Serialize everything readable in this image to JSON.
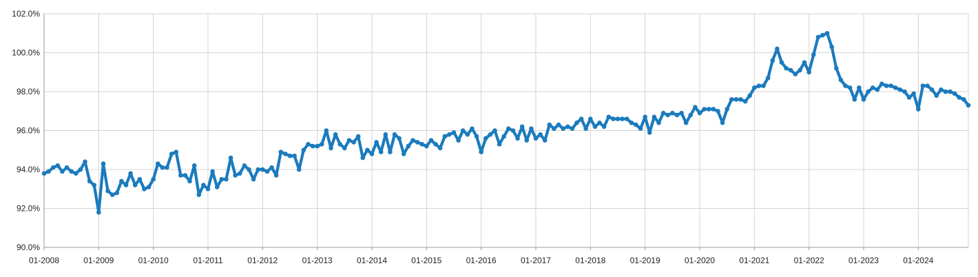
{
  "chart_data": {
    "type": "line",
    "title": "",
    "xlabel": "",
    "ylabel": "",
    "ylim": [
      90.0,
      102.0
    ],
    "y_ticks": [
      "90.0%",
      "92.0%",
      "94.0%",
      "96.0%",
      "98.0%",
      "100.0%",
      "102.0%"
    ],
    "x_ticks": [
      "01-2008",
      "01-2009",
      "01-2010",
      "01-2011",
      "01-2012",
      "01-2013",
      "01-2014",
      "01-2015",
      "01-2016",
      "01-2017",
      "01-2018",
      "01-2019",
      "01-2020",
      "01-2021",
      "01-2022",
      "01-2023",
      "01-2024"
    ],
    "x_start": "01-2008",
    "x_end": "12-2024",
    "grid": true,
    "legend": "none",
    "series_color": "#1b7bbd",
    "series": [
      {
        "values": [
          93.8,
          93.9,
          94.1,
          94.2,
          93.9,
          94.1,
          93.9,
          93.8,
          94.0,
          94.4,
          93.4,
          93.2,
          91.8,
          94.3,
          92.9,
          92.7,
          92.8,
          93.4,
          93.2,
          93.8,
          93.2,
          93.5,
          93.0,
          93.1,
          93.5,
          94.3,
          94.1,
          94.1,
          94.8,
          94.9,
          93.7,
          93.7,
          93.4,
          94.2,
          92.7,
          93.2,
          93.0,
          93.9,
          93.1,
          93.5,
          93.5,
          94.6,
          93.7,
          93.8,
          94.2,
          94.0,
          93.5,
          94.0,
          94.0,
          93.9,
          94.1,
          93.7,
          94.9,
          94.8,
          94.7,
          94.7,
          94.0,
          95.0,
          95.3,
          95.2,
          95.2,
          95.3,
          96.0,
          95.1,
          95.8,
          95.3,
          95.1,
          95.5,
          95.4,
          95.7,
          94.6,
          95.0,
          94.8,
          95.4,
          94.9,
          95.8,
          94.9,
          95.8,
          95.6,
          94.8,
          95.2,
          95.5,
          95.4,
          95.3,
          95.2,
          95.5,
          95.3,
          95.1,
          95.7,
          95.8,
          95.9,
          95.5,
          96.0,
          95.8,
          96.1,
          95.7,
          94.9,
          95.6,
          95.8,
          96.0,
          95.3,
          95.7,
          96.1,
          96.0,
          95.6,
          96.2,
          95.5,
          96.1,
          95.6,
          95.8,
          95.5,
          96.3,
          96.1,
          96.3,
          96.1,
          96.2,
          96.1,
          96.4,
          96.6,
          96.1,
          96.6,
          96.2,
          96.4,
          96.2,
          96.7,
          96.6,
          96.6,
          96.6,
          96.6,
          96.4,
          96.3,
          96.1,
          96.7,
          95.9,
          96.7,
          96.4,
          96.9,
          96.8,
          96.9,
          96.8,
          96.9,
          96.4,
          96.8,
          97.2,
          96.9,
          97.1,
          97.1,
          97.1,
          97.0,
          96.4,
          97.1,
          97.6,
          97.6,
          97.6,
          97.5,
          97.8,
          98.2,
          98.3,
          98.3,
          98.7,
          99.6,
          100.2,
          99.5,
          99.2,
          99.1,
          98.9,
          99.1,
          99.5,
          99.0,
          99.9,
          100.8,
          100.9,
          101.0,
          100.3,
          99.2,
          98.6,
          98.3,
          98.2,
          97.6,
          98.2,
          97.6,
          98.0,
          98.2,
          98.1,
          98.4,
          98.3,
          98.3,
          98.2,
          98.1,
          98.0,
          97.7,
          97.9,
          97.1,
          98.3,
          98.3,
          98.1,
          97.8,
          98.1,
          98.0,
          98.0,
          97.9,
          97.7,
          97.6,
          97.3
        ]
      }
    ]
  }
}
